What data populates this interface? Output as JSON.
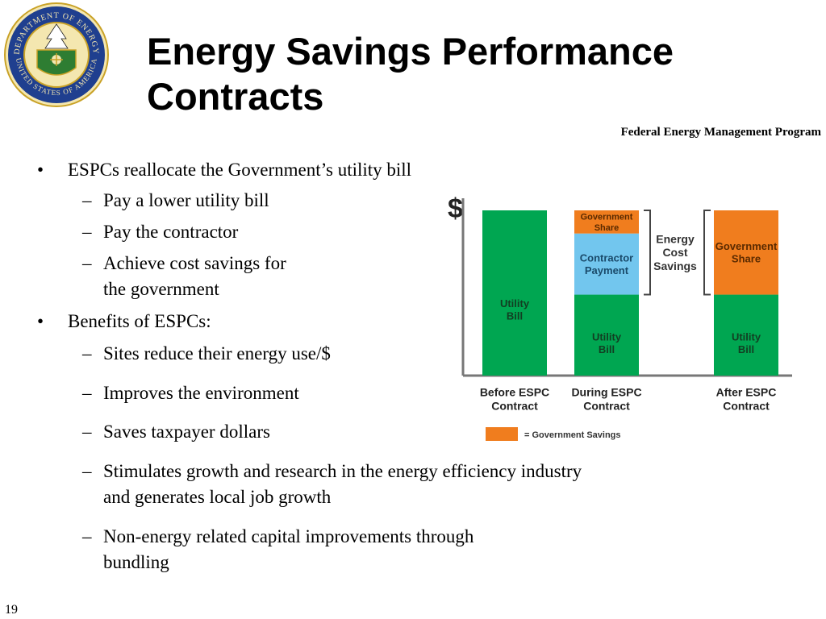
{
  "slide": {
    "title": "Energy Savings Performance Contracts",
    "title_line1": "Energy Savings Performance",
    "title_line2": "Contracts",
    "subtitle": "Federal Energy Management Program",
    "page_number": "19",
    "seal": {
      "text_top": "DEPARTMENT OF ENERGY",
      "text_bottom": "UNITED STATES OF AMERICA",
      "colors": {
        "ring": "#1f3f8f",
        "gold": "#c9a227",
        "shield": "#2e7d32"
      }
    }
  },
  "bullets": [
    {
      "text": "ESPCs reallocate the Government’s utility bill",
      "sub": [
        {
          "lines": [
            "Pay a lower utility bill"
          ]
        },
        {
          "lines": [
            "Pay the contractor"
          ]
        },
        {
          "lines": [
            "Achieve cost savings for",
            "the government"
          ]
        }
      ]
    },
    {
      "text": "Benefits of ESPCs:",
      "sub": [
        {
          "lines": [
            "Sites reduce their energy use/$"
          ]
        },
        {
          "lines": [
            "Improves the environment"
          ]
        },
        {
          "lines": [
            "Saves taxpayer dollars"
          ]
        },
        {
          "lines": [
            "Stimulates growth and research in the energy efficiency industry",
            "and generates local job growth"
          ]
        },
        {
          "lines": [
            "Non-energy related capital improvements through",
            "bundling"
          ]
        }
      ]
    }
  ],
  "markers": {
    "bullet": "•",
    "dash": "–"
  },
  "chart_data": {
    "type": "bar",
    "ylabel": "$",
    "categories": [
      [
        "Before ESPC",
        "Contract"
      ],
      [
        "During ESPC",
        "Contract"
      ],
      [
        "After ESPC",
        "Contract"
      ]
    ],
    "stack_scale": 100,
    "bars": [
      {
        "segments": [
          {
            "label": [
              "Utility",
              "Bill"
            ],
            "value": 100,
            "color": "#00a651"
          }
        ]
      },
      {
        "segments": [
          {
            "label": [
              "Utility",
              "Bill"
            ],
            "value": 49,
            "color": "#00a651"
          },
          {
            "label": [
              "Contractor",
              "Payment"
            ],
            "value": 37,
            "color": "#72c6ee"
          },
          {
            "label": [
              "Government",
              "Share"
            ],
            "value": 14,
            "color": "#f07d1e"
          }
        ]
      },
      {
        "segments": [
          {
            "label": [
              "Utility",
              "Bill"
            ],
            "value": 49,
            "color": "#00a651"
          },
          {
            "label": [
              "Government",
              "Share"
            ],
            "value": 51,
            "color": "#f07d1e"
          }
        ]
      }
    ],
    "bracket_label": [
      "Energy",
      "Cost",
      "Savings"
    ],
    "legend": {
      "label": "= Government Savings",
      "color": "#f07d1e"
    },
    "axis_color": "#777777"
  }
}
